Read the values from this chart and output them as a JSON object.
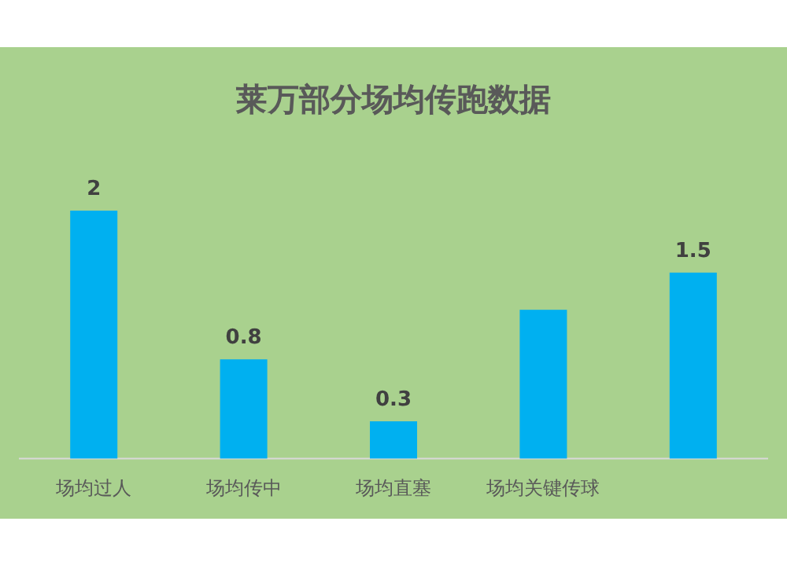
{
  "chart_data": {
    "type": "bar",
    "title": "莱万部分场均传跑数据",
    "categories": [
      "场均过人",
      "场均传中",
      "场均直塞",
      "场均关键传球",
      null
    ],
    "values": [
      2,
      0.8,
      0.3,
      1.2,
      1.5
    ],
    "value_labels": [
      "2",
      "0.8",
      "0.3",
      null,
      "1.5"
    ],
    "color": "#00b0f0"
  }
}
